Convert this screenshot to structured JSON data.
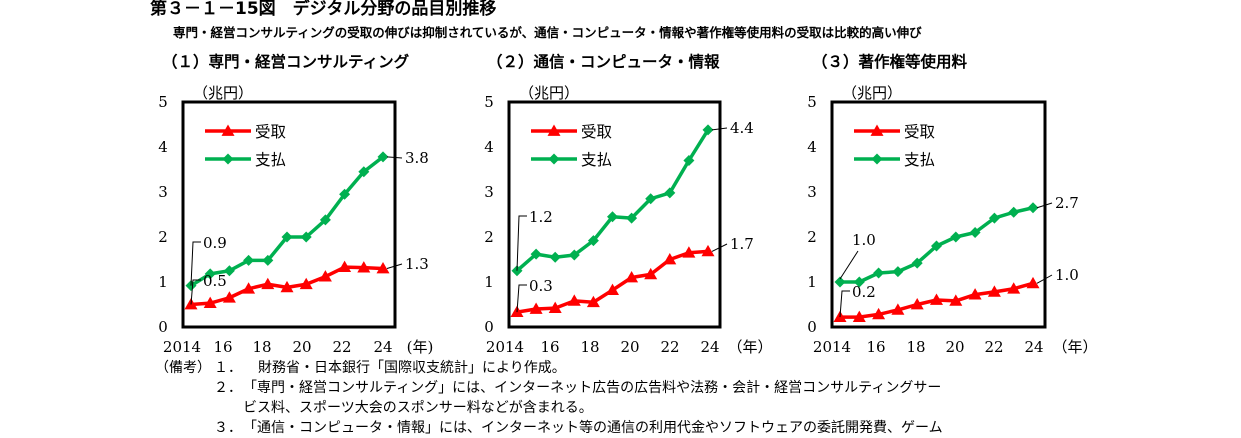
{
  "figure": {
    "title": "第３－１－15図　デジタル分野の品目別推移",
    "subtitle": "専門・経営コンサルティングの受取の伸びは抑制されているが、通信・コンピュータ・情報や著作権等使用料の受取は比較的高い伸び"
  },
  "colors": {
    "receipts": "#ff0000",
    "payments": "#00b050",
    "frame": "#000000"
  },
  "chart_data": [
    {
      "type": "line",
      "title": "（１）専門・経営コンサルティング",
      "ylabel": "（兆円）",
      "xlabel": "(年)",
      "ylim": [
        0,
        5
      ],
      "yticks": [
        "0",
        "1",
        "2",
        "3",
        "4",
        "5"
      ],
      "xticks": [
        "2014",
        "16",
        "18",
        "20",
        "22",
        "24"
      ],
      "x": [
        2014,
        2015,
        2016,
        2017,
        2018,
        2019,
        2020,
        2021,
        2022,
        2023,
        2024
      ],
      "series": [
        {
          "name": "受取",
          "values": [
            0.5,
            0.53,
            0.65,
            0.85,
            0.95,
            0.88,
            0.95,
            1.12,
            1.33,
            1.32,
            1.3
          ]
        },
        {
          "name": "支払",
          "values": [
            0.92,
            1.18,
            1.25,
            1.48,
            1.48,
            2.0,
            2.0,
            2.38,
            2.95,
            3.45,
            3.78
          ]
        }
      ],
      "annotations": {
        "start_receipts": "0.5",
        "start_payments": "0.9",
        "end_receipts": "1.3",
        "end_payments": "3.8"
      },
      "legend": "top-left"
    },
    {
      "type": "line",
      "title": "（２）通信・コンピュータ・情報",
      "ylabel": "（兆円）",
      "xlabel": "（年）",
      "ylim": [
        0,
        5
      ],
      "yticks": [
        "0",
        "1",
        "2",
        "3",
        "4",
        "5"
      ],
      "xticks": [
        "2014",
        "16",
        "18",
        "20",
        "22",
        "24"
      ],
      "x": [
        2014,
        2015,
        2016,
        2017,
        2018,
        2019,
        2020,
        2021,
        2022,
        2023,
        2024
      ],
      "series": [
        {
          "name": "受取",
          "values": [
            0.33,
            0.4,
            0.42,
            0.58,
            0.55,
            0.82,
            1.1,
            1.17,
            1.5,
            1.65,
            1.68
          ]
        },
        {
          "name": "支払",
          "values": [
            1.25,
            1.62,
            1.55,
            1.6,
            1.92,
            2.45,
            2.42,
            2.85,
            2.98,
            3.7,
            4.38
          ]
        }
      ],
      "annotations": {
        "start_receipts": "0.3",
        "start_payments": "1.2",
        "end_receipts": "1.7",
        "end_payments": "4.4"
      },
      "legend": "top-left"
    },
    {
      "type": "line",
      "title": "（３）著作権等使用料",
      "ylabel": "（兆円）",
      "xlabel": "（年）",
      "ylim": [
        0,
        5
      ],
      "yticks": [
        "0",
        "1",
        "2",
        "3",
        "4",
        "5"
      ],
      "xticks": [
        "2014",
        "16",
        "18",
        "20",
        "22",
        "24"
      ],
      "x": [
        2014,
        2015,
        2016,
        2017,
        2018,
        2019,
        2020,
        2021,
        2022,
        2023,
        2024
      ],
      "series": [
        {
          "name": "受取",
          "values": [
            0.22,
            0.22,
            0.28,
            0.38,
            0.5,
            0.6,
            0.58,
            0.72,
            0.78,
            0.85,
            0.97
          ]
        },
        {
          "name": "支払",
          "values": [
            1.0,
            1.0,
            1.2,
            1.23,
            1.42,
            1.8,
            2.0,
            2.1,
            2.42,
            2.55,
            2.65
          ]
        }
      ],
      "annotations": {
        "start_receipts": "0.2",
        "start_payments": "1.0",
        "end_receipts": "1.0",
        "end_payments": "2.7"
      },
      "legend": "top-left"
    }
  ],
  "notes": {
    "head": "（備考）",
    "items": [
      {
        "num": "１．",
        "text": "財務省・日本銀行「国際収支統計」により作成。"
      },
      {
        "num": "２．",
        "text": "「専門・経営コンサルティング」には、インターネット広告の広告料や法務・会計・経営コンサルティングサー"
      },
      {
        "num": "",
        "text": "ビス料、スポーツ大会のスポンサー料などが含まれる。"
      },
      {
        "num": "３．",
        "text": "「通信・コンピュータ・情報」には、インターネット等の通信の利用代金やソフトウェアの委託開発費、ゲーム"
      }
    ]
  }
}
